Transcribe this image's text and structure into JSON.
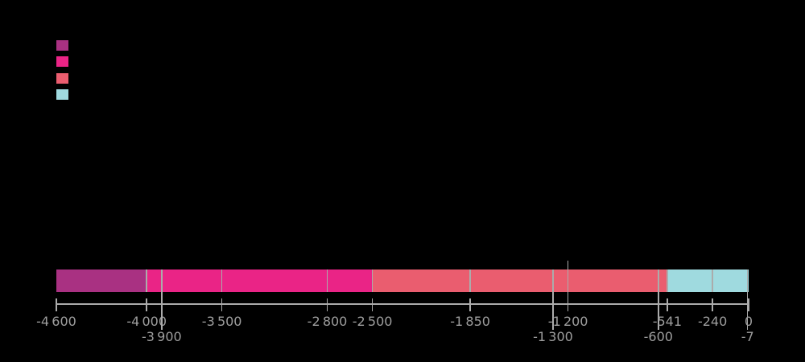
{
  "chart_data": {
    "type": "bar",
    "subtype": "timeline",
    "orientation": "horizontal",
    "title": "",
    "x_axis": {
      "min": -4600,
      "max": 0,
      "grid": false,
      "major_ticks": [
        {
          "value": -4600,
          "label": "-4 600",
          "row": 1
        },
        {
          "value": -4000,
          "label": "-4 000",
          "row": 1
        },
        {
          "value": -3900,
          "label": "-3 900",
          "row": 2
        },
        {
          "value": -3500,
          "label": "-3 500",
          "row": 1
        },
        {
          "value": -2800,
          "label": "-2 800",
          "row": 1
        },
        {
          "value": -2500,
          "label": "-2 500",
          "row": 1
        },
        {
          "value": -1850,
          "label": "-1 850",
          "row": 1
        },
        {
          "value": -1300,
          "label": "-1 300",
          "row": 2
        },
        {
          "value": -1200,
          "label": "-1 200",
          "row": 1
        },
        {
          "value": -600,
          "label": "-600",
          "row": 2
        },
        {
          "value": -541,
          "label": "-541",
          "row": 1
        },
        {
          "value": -240,
          "label": "-240",
          "row": 1
        },
        {
          "value": -7,
          "label": "-7",
          "row": 2
        },
        {
          "value": 0,
          "label": "0",
          "row": 1
        }
      ]
    },
    "segments": [
      {
        "start": -4600,
        "end": -4000,
        "color": "#A93182"
      },
      {
        "start": -4000,
        "end": -2500,
        "color": "#EA2486"
      },
      {
        "start": -2500,
        "end": -541,
        "color": "#EA5D6F"
      },
      {
        "start": -541,
        "end": 0,
        "color": "#9FDADF"
      }
    ],
    "dividers": [
      -4000,
      -3900,
      -3500,
      -2800,
      -2500,
      -1850,
      -1300,
      -1200,
      -600,
      -541,
      -240
    ],
    "annotation_marker": {
      "value": -1200
    },
    "legend": {
      "position": "top-left",
      "swatches": [
        "#A93182",
        "#EA2486",
        "#EA5D6F",
        "#9FDADF"
      ]
    },
    "colors": {
      "axis": "#ABABAB",
      "tick_label": "#9E9E9E",
      "background": "#000000"
    }
  }
}
